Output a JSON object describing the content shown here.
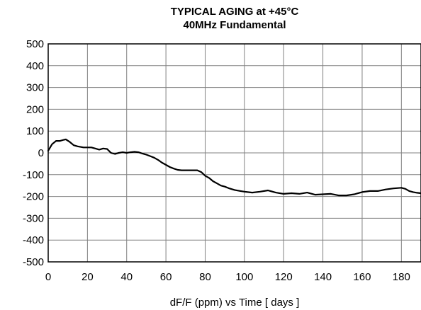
{
  "chart_data": {
    "type": "line",
    "title": "TYPICAL  AGING at +45°C",
    "subtitle": "40MHz Fundamental",
    "xlabel": "dF/F (ppm)  vs  Time [ days  ]",
    "ylabel": "",
    "xlim": [
      0,
      190
    ],
    "ylim": [
      -500,
      500
    ],
    "x_ticks": [
      0,
      20,
      40,
      60,
      80,
      100,
      120,
      140,
      160,
      180
    ],
    "x_tick_labels": [
      "0",
      "20",
      "40",
      "60",
      "80",
      "100",
      "120",
      "140",
      "160",
      "180"
    ],
    "y_ticks": [
      500,
      400,
      300,
      200,
      100,
      0,
      -100,
      -200,
      -300,
      -400,
      -500
    ],
    "y_tick_labels": [
      "500",
      "400",
      "300",
      "200",
      "100",
      "0",
      "-100",
      "-200",
      "-300",
      "-400",
      "-500"
    ],
    "grid": true,
    "legend": "none",
    "line_color": "#000000",
    "grid_color": "#808080",
    "series": [
      {
        "x": [
          0,
          2,
          4,
          6,
          8,
          9,
          11,
          13,
          15,
          18,
          20,
          22,
          24,
          26,
          28,
          30,
          32,
          34,
          36,
          38,
          40,
          42,
          44,
          46,
          48,
          50,
          52,
          54,
          56,
          58,
          60,
          62,
          64,
          66,
          68,
          70,
          72,
          74,
          76,
          78,
          80,
          82,
          84,
          86,
          88,
          90,
          92,
          95,
          98,
          100,
          104,
          108,
          112,
          116,
          120,
          124,
          128,
          132,
          136,
          140,
          144,
          148,
          152,
          156,
          160,
          164,
          168,
          172,
          176,
          180,
          182,
          184,
          186,
          188,
          190
        ],
        "y": [
          10,
          40,
          55,
          55,
          60,
          62,
          50,
          35,
          30,
          25,
          25,
          25,
          20,
          15,
          20,
          18,
          0,
          -5,
          0,
          3,
          0,
          3,
          5,
          3,
          -3,
          -8,
          -15,
          -22,
          -32,
          -45,
          -55,
          -65,
          -72,
          -78,
          -80,
          -80,
          -80,
          -80,
          -80,
          -88,
          -105,
          -115,
          -130,
          -140,
          -150,
          -155,
          -162,
          -170,
          -175,
          -178,
          -182,
          -178,
          -172,
          -182,
          -188,
          -185,
          -188,
          -182,
          -192,
          -190,
          -188,
          -195,
          -195,
          -190,
          -180,
          -175,
          -175,
          -168,
          -163,
          -160,
          -165,
          -175,
          -180,
          -183,
          -185
        ]
      }
    ]
  }
}
